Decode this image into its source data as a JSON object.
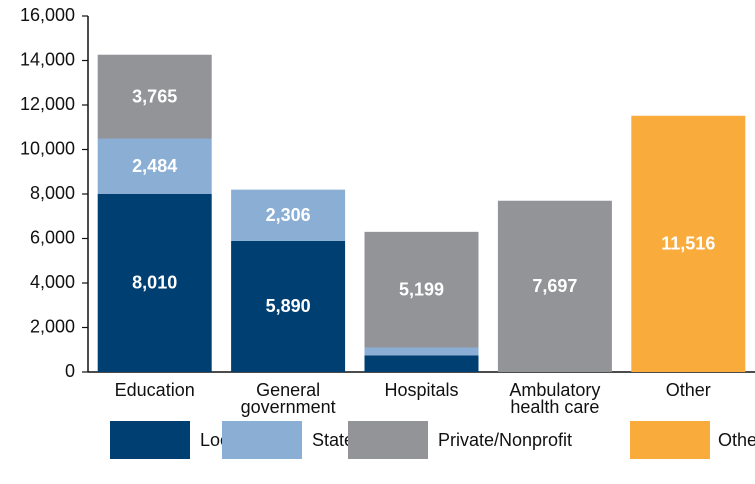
{
  "chart_data": {
    "type": "stacked_bar",
    "categories": [
      "Education",
      "General government",
      "Hospitals",
      "Ambulatory health care",
      "Other"
    ],
    "series": [
      {
        "name": "Local",
        "color": "#003f72",
        "values": [
          8010,
          5890,
          750,
          null,
          null
        ],
        "value_labels": [
          "8,010",
          "5,890",
          null,
          null,
          null
        ]
      },
      {
        "name": "State",
        "color": "#8aaed4",
        "values": [
          2484,
          2306,
          350,
          null,
          null
        ],
        "value_labels": [
          "2,484",
          "2,306",
          null,
          null,
          null
        ]
      },
      {
        "name": "Private/Nonprofit",
        "color": "#929497",
        "values": [
          3765,
          null,
          5199,
          7697,
          null
        ],
        "value_labels": [
          "3,765",
          null,
          "5,199",
          "7,697",
          null
        ]
      },
      {
        "name": "Other",
        "color": "#f9ac3c",
        "values": [
          null,
          null,
          null,
          null,
          11516
        ],
        "value_labels": [
          null,
          null,
          null,
          null,
          "11,516"
        ]
      }
    ],
    "ylim": [
      0,
      16000
    ],
    "yticks": [
      0,
      {
        "value": 2000,
        "label": "2,000"
      },
      {
        "value": 4000,
        "label": "4,000"
      },
      {
        "value": 6000,
        "label": "6,000"
      },
      {
        "value": 8000,
        "label": "8,000"
      },
      {
        "value": 10000,
        "label": "10,000"
      },
      {
        "value": 12000,
        "label": "12,000"
      },
      {
        "value": 14000,
        "label": "14,000"
      },
      {
        "value": 16000,
        "label": "16,000"
      }
    ],
    "grid": false
  }
}
